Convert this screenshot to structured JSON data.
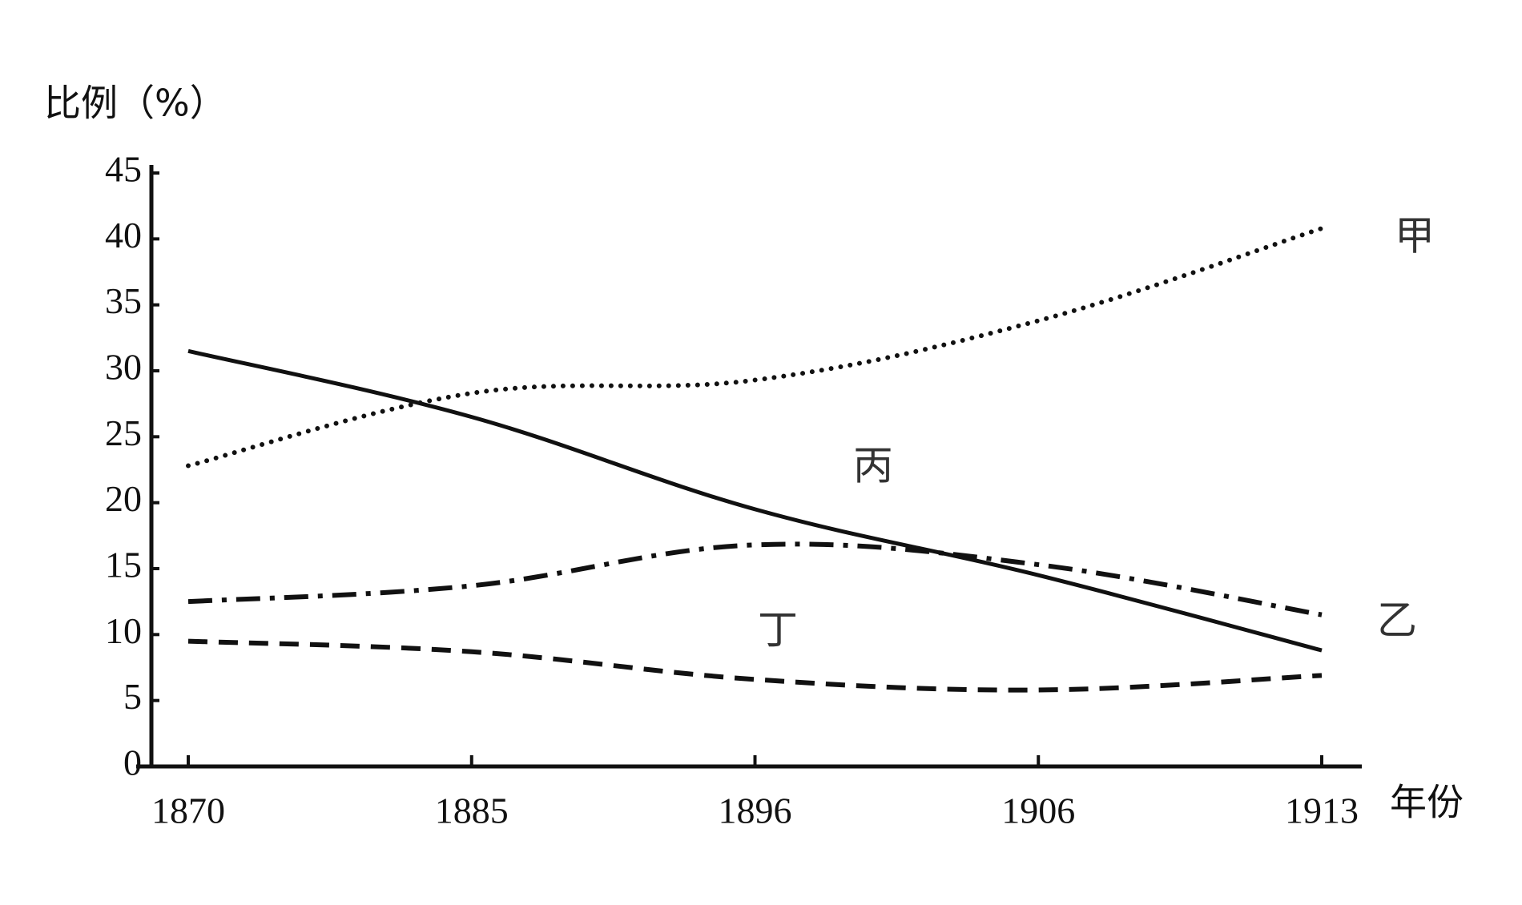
{
  "chart_data": {
    "type": "line",
    "y_label": "比例（%）",
    "x_label": "年份",
    "categories": [
      "1870",
      "1885",
      "1896",
      "1906",
      "1913"
    ],
    "ylim": [
      0,
      45
    ],
    "yticks": [
      0,
      5,
      10,
      15,
      20,
      25,
      30,
      35,
      40,
      45
    ],
    "series": [
      {
        "name": "甲",
        "color": "#111111",
        "dash": "dotted",
        "values": [
          22.8,
          28.3,
          29.3,
          33.8,
          40.8
        ]
      },
      {
        "name": "乙",
        "color": "#111111",
        "dash": "dashdot",
        "values": [
          12.5,
          13.7,
          16.8,
          15.3,
          11.5
        ]
      },
      {
        "name": "丙",
        "color": "#111111",
        "dash": "solid",
        "values": [
          31.5,
          26.5,
          19.5,
          14.5,
          8.8
        ]
      },
      {
        "name": "丁",
        "color": "#111111",
        "dash": "dashed",
        "values": [
          9.5,
          8.7,
          6.6,
          5.8,
          6.9
        ]
      }
    ]
  }
}
